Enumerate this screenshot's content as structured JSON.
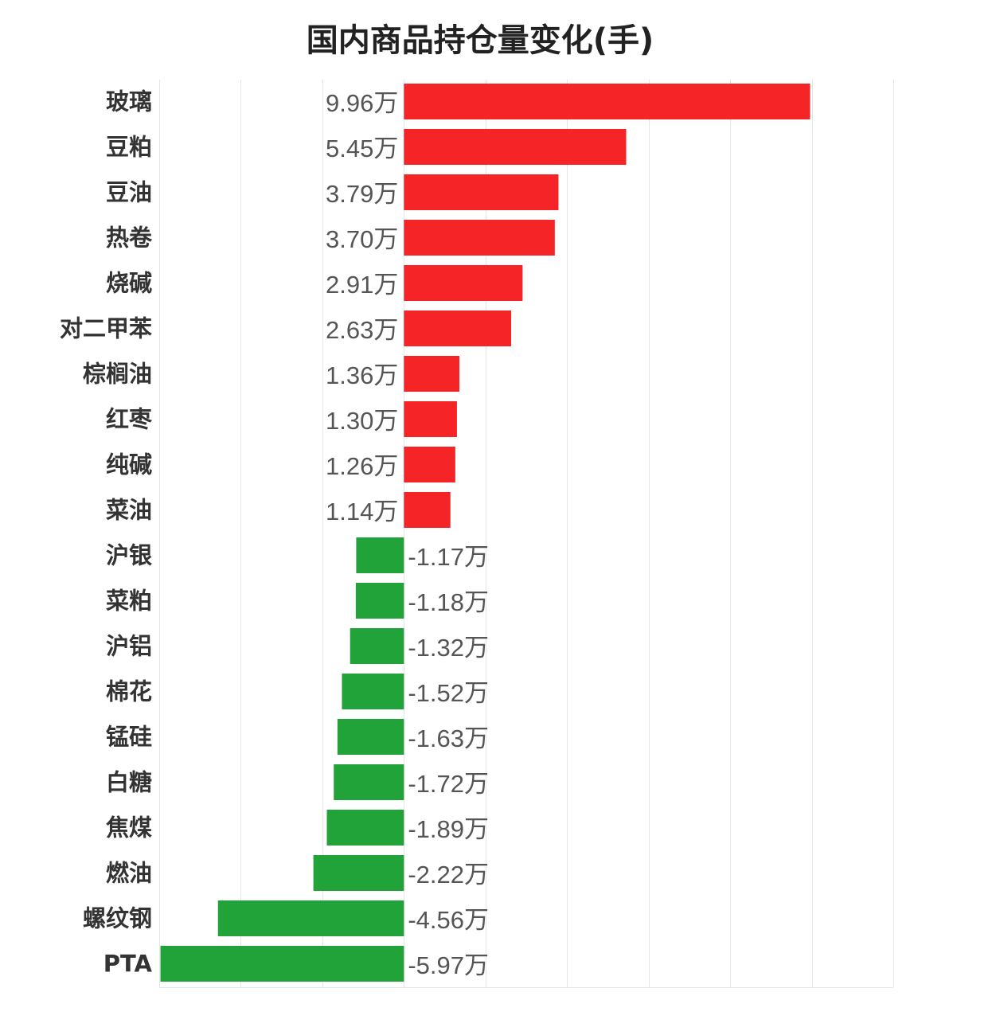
{
  "chart_data": {
    "type": "bar",
    "orientation": "horizontal",
    "title": "国内商品持仓量变化(手)",
    "unit_suffix": "万",
    "categories": [
      "玻璃",
      "豆粕",
      "豆油",
      "热卷",
      "烧碱",
      "对二甲苯",
      "棕榈油",
      "红枣",
      "纯碱",
      "菜油",
      "沪银",
      "菜粕",
      "沪铝",
      "棉花",
      "锰硅",
      "白糖",
      "焦煤",
      "燃油",
      "螺纹钢",
      "PTA"
    ],
    "values": [
      9.96,
      5.45,
      3.79,
      3.7,
      2.91,
      2.63,
      1.36,
      1.3,
      1.26,
      1.14,
      -1.17,
      -1.18,
      -1.32,
      -1.52,
      -1.63,
      -1.72,
      -1.89,
      -2.22,
      -4.56,
      -5.97
    ],
    "xlim": [
      -6,
      12
    ],
    "grid": true,
    "colors": {
      "positive": "#f52427",
      "negative": "#22a33a"
    }
  }
}
